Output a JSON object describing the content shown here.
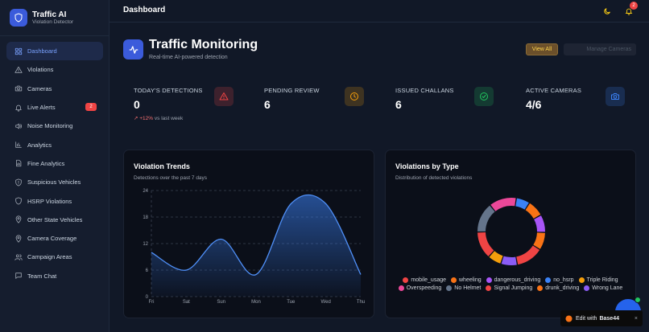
{
  "brand": {
    "title": "Traffic AI",
    "subtitle": "Violation Detector",
    "icon": "shield-icon"
  },
  "sidebar": {
    "items": [
      {
        "label": "Dashboard",
        "icon": "grid-icon",
        "active": true
      },
      {
        "label": "Violations",
        "icon": "alert-triangle-icon"
      },
      {
        "label": "Cameras",
        "icon": "camera-icon"
      },
      {
        "label": "Live Alerts",
        "icon": "bell-icon",
        "badge": "2"
      },
      {
        "label": "Noise Monitoring",
        "icon": "speaker-icon"
      },
      {
        "label": "Analytics",
        "icon": "bar-chart-icon"
      },
      {
        "label": "Fine Analytics",
        "icon": "file-chart-icon"
      },
      {
        "label": "Suspicious Vehicles",
        "icon": "shield-alert-icon"
      },
      {
        "label": "HSRP Violations",
        "icon": "shield-icon"
      },
      {
        "label": "Other State Vehicles",
        "icon": "map-pin-icon"
      },
      {
        "label": "Camera Coverage",
        "icon": "map-pin-icon"
      },
      {
        "label": "Campaign Areas",
        "icon": "users-icon"
      },
      {
        "label": "Team Chat",
        "icon": "message-icon"
      }
    ]
  },
  "header": {
    "title": "Dashboard",
    "notif_count": "2"
  },
  "hero": {
    "title": "Traffic Monitoring",
    "subtitle": "Real-time AI-powered detection",
    "view_all": "View All",
    "manage_cameras": "Manage Cameras"
  },
  "stats": [
    {
      "label": "TODAY'S DETECTIONS",
      "value": "0",
      "trend_pct": "+12%",
      "trend_text": "vs last week",
      "icon": "alert-triangle-icon",
      "color": "#ef4444"
    },
    {
      "label": "PENDING REVIEW",
      "value": "6",
      "icon": "clock-icon",
      "color": "#f59e0b"
    },
    {
      "label": "ISSUED CHALLANS",
      "value": "6",
      "icon": "check-circle-icon",
      "color": "#22c55e"
    },
    {
      "label": "ACTIVE CAMERAS",
      "value": "4/6",
      "icon": "camera-icon",
      "color": "#3b82f6"
    }
  ],
  "trends": {
    "title": "Violation Trends",
    "subtitle": "Detections over the past 7 days"
  },
  "types": {
    "title": "Violations by Type",
    "subtitle": "Distribution of detected violations"
  },
  "chart_data": [
    {
      "type": "area",
      "title": "Violation Trends",
      "categories": [
        "Fri",
        "Sat",
        "Sun",
        "Mon",
        "Tue",
        "Wed",
        "Thu"
      ],
      "values": [
        10,
        6,
        13,
        5,
        21,
        21,
        5
      ],
      "yticks": [
        0,
        6,
        12,
        18,
        24
      ],
      "ylim": [
        0,
        24
      ],
      "grid": true,
      "color": "#3b82f6"
    },
    {
      "type": "pie",
      "title": "Violations by Type",
      "labels": [
        "mobile_usage",
        "wheeling",
        "dangerous_driving",
        "no_hsrp",
        "Triple Riding",
        "Overspeeding",
        "No Helmet",
        "Signal Jumping",
        "drunk_driving",
        "Wrong Lane"
      ],
      "values": [
        2,
        1.3,
        1.3,
        1,
        1,
        2,
        2.2,
        2,
        1.2,
        1.2
      ],
      "order": [
        3,
        8,
        2,
        1,
        0,
        9,
        4,
        7,
        6,
        5
      ],
      "colors": [
        "#ef4444",
        "#f97316",
        "#a855f7",
        "#3b82f6",
        "#f59e0b",
        "#ec4899",
        "#64748b",
        "#ef4444",
        "#f97316",
        "#8b5cf6"
      ],
      "legend": "bottom"
    }
  ],
  "footer": {
    "edit_with": "Edit with",
    "edit_brand": "Base44",
    "close": "×"
  }
}
